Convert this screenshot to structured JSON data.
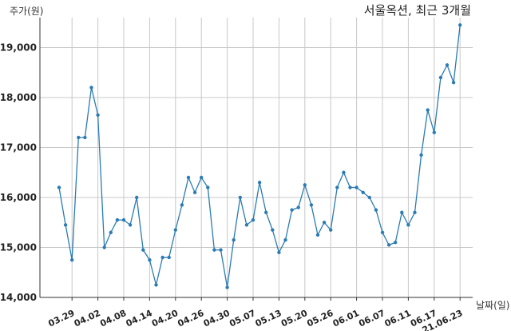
{
  "chart_data": {
    "type": "line",
    "title": "서울옥션, 최근 3개월",
    "ylabel": "주가(원)",
    "xlabel": "날짜(일)",
    "ylim": [
      14000,
      19600
    ],
    "yticks": [
      14000,
      15000,
      16000,
      17000,
      18000,
      19000
    ],
    "ytick_labels": [
      "14,000",
      "15,000",
      "16,000",
      "17,000",
      "18,000",
      "19,000"
    ],
    "xtick_labels": [
      "03.29",
      "04.02",
      "04.08",
      "04.14",
      "04.20",
      "04.26",
      "04.30",
      "05.07",
      "05.13",
      "05.20",
      "05.26",
      "06.01",
      "06.07",
      "06.11",
      "06.17",
      "21.06.23"
    ],
    "xtick_index": [
      2,
      6,
      10,
      14,
      18,
      22,
      26,
      30,
      34,
      38,
      42,
      46,
      50,
      54,
      58,
      62
    ],
    "grid": true,
    "color": "#2b7bb4",
    "series": [
      {
        "values": [
          16200,
          15450,
          14750,
          17200,
          17200,
          18200,
          17650,
          15000,
          15300,
          15550,
          15550,
          15450,
          16000,
          14950,
          14750,
          14250,
          14800,
          14800,
          15350,
          15850,
          16400,
          16100,
          16400,
          16200,
          14950,
          14950,
          14200,
          15150,
          16000,
          15450,
          15550,
          16300,
          15700,
          15350,
          14900,
          15150,
          15750,
          15800,
          16250,
          15850,
          15250,
          15500,
          15350,
          16200,
          16500,
          16200,
          16200,
          16100,
          16000,
          15750,
          15300,
          15050,
          15100,
          15700,
          15450,
          15700,
          16850,
          17750,
          17300,
          18400,
          18650,
          18300,
          19450
        ]
      }
    ]
  }
}
